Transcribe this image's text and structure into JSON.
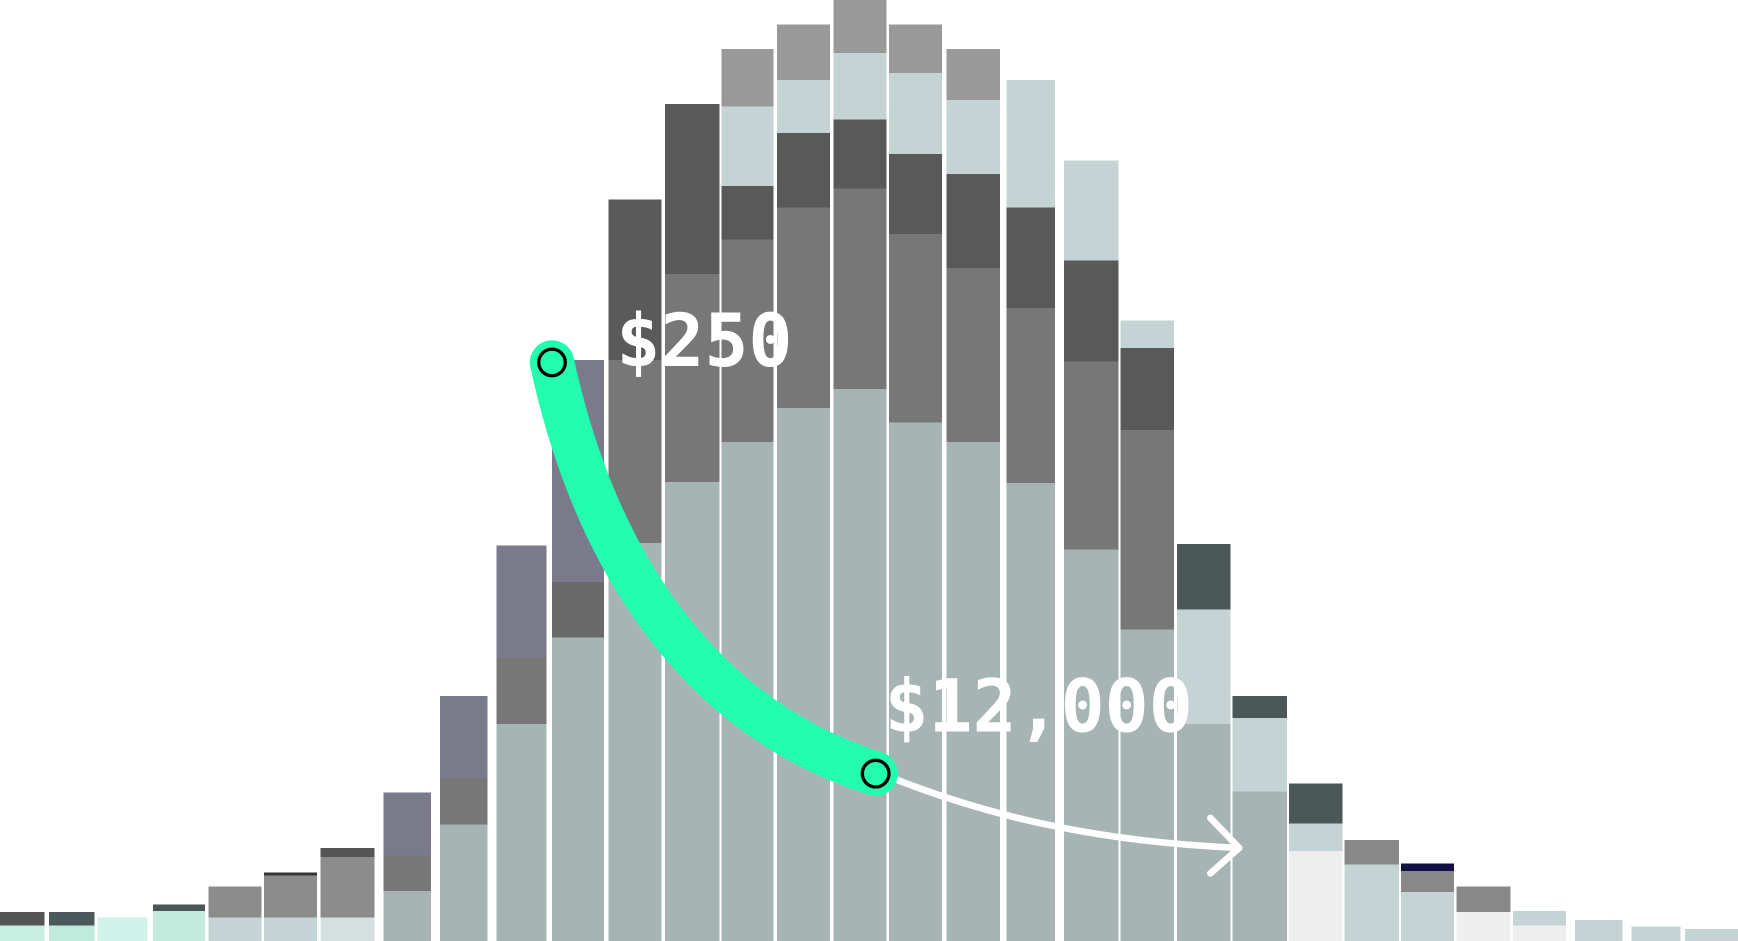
{
  "labels": {
    "start": "$250",
    "end": "$12,000"
  }
}
